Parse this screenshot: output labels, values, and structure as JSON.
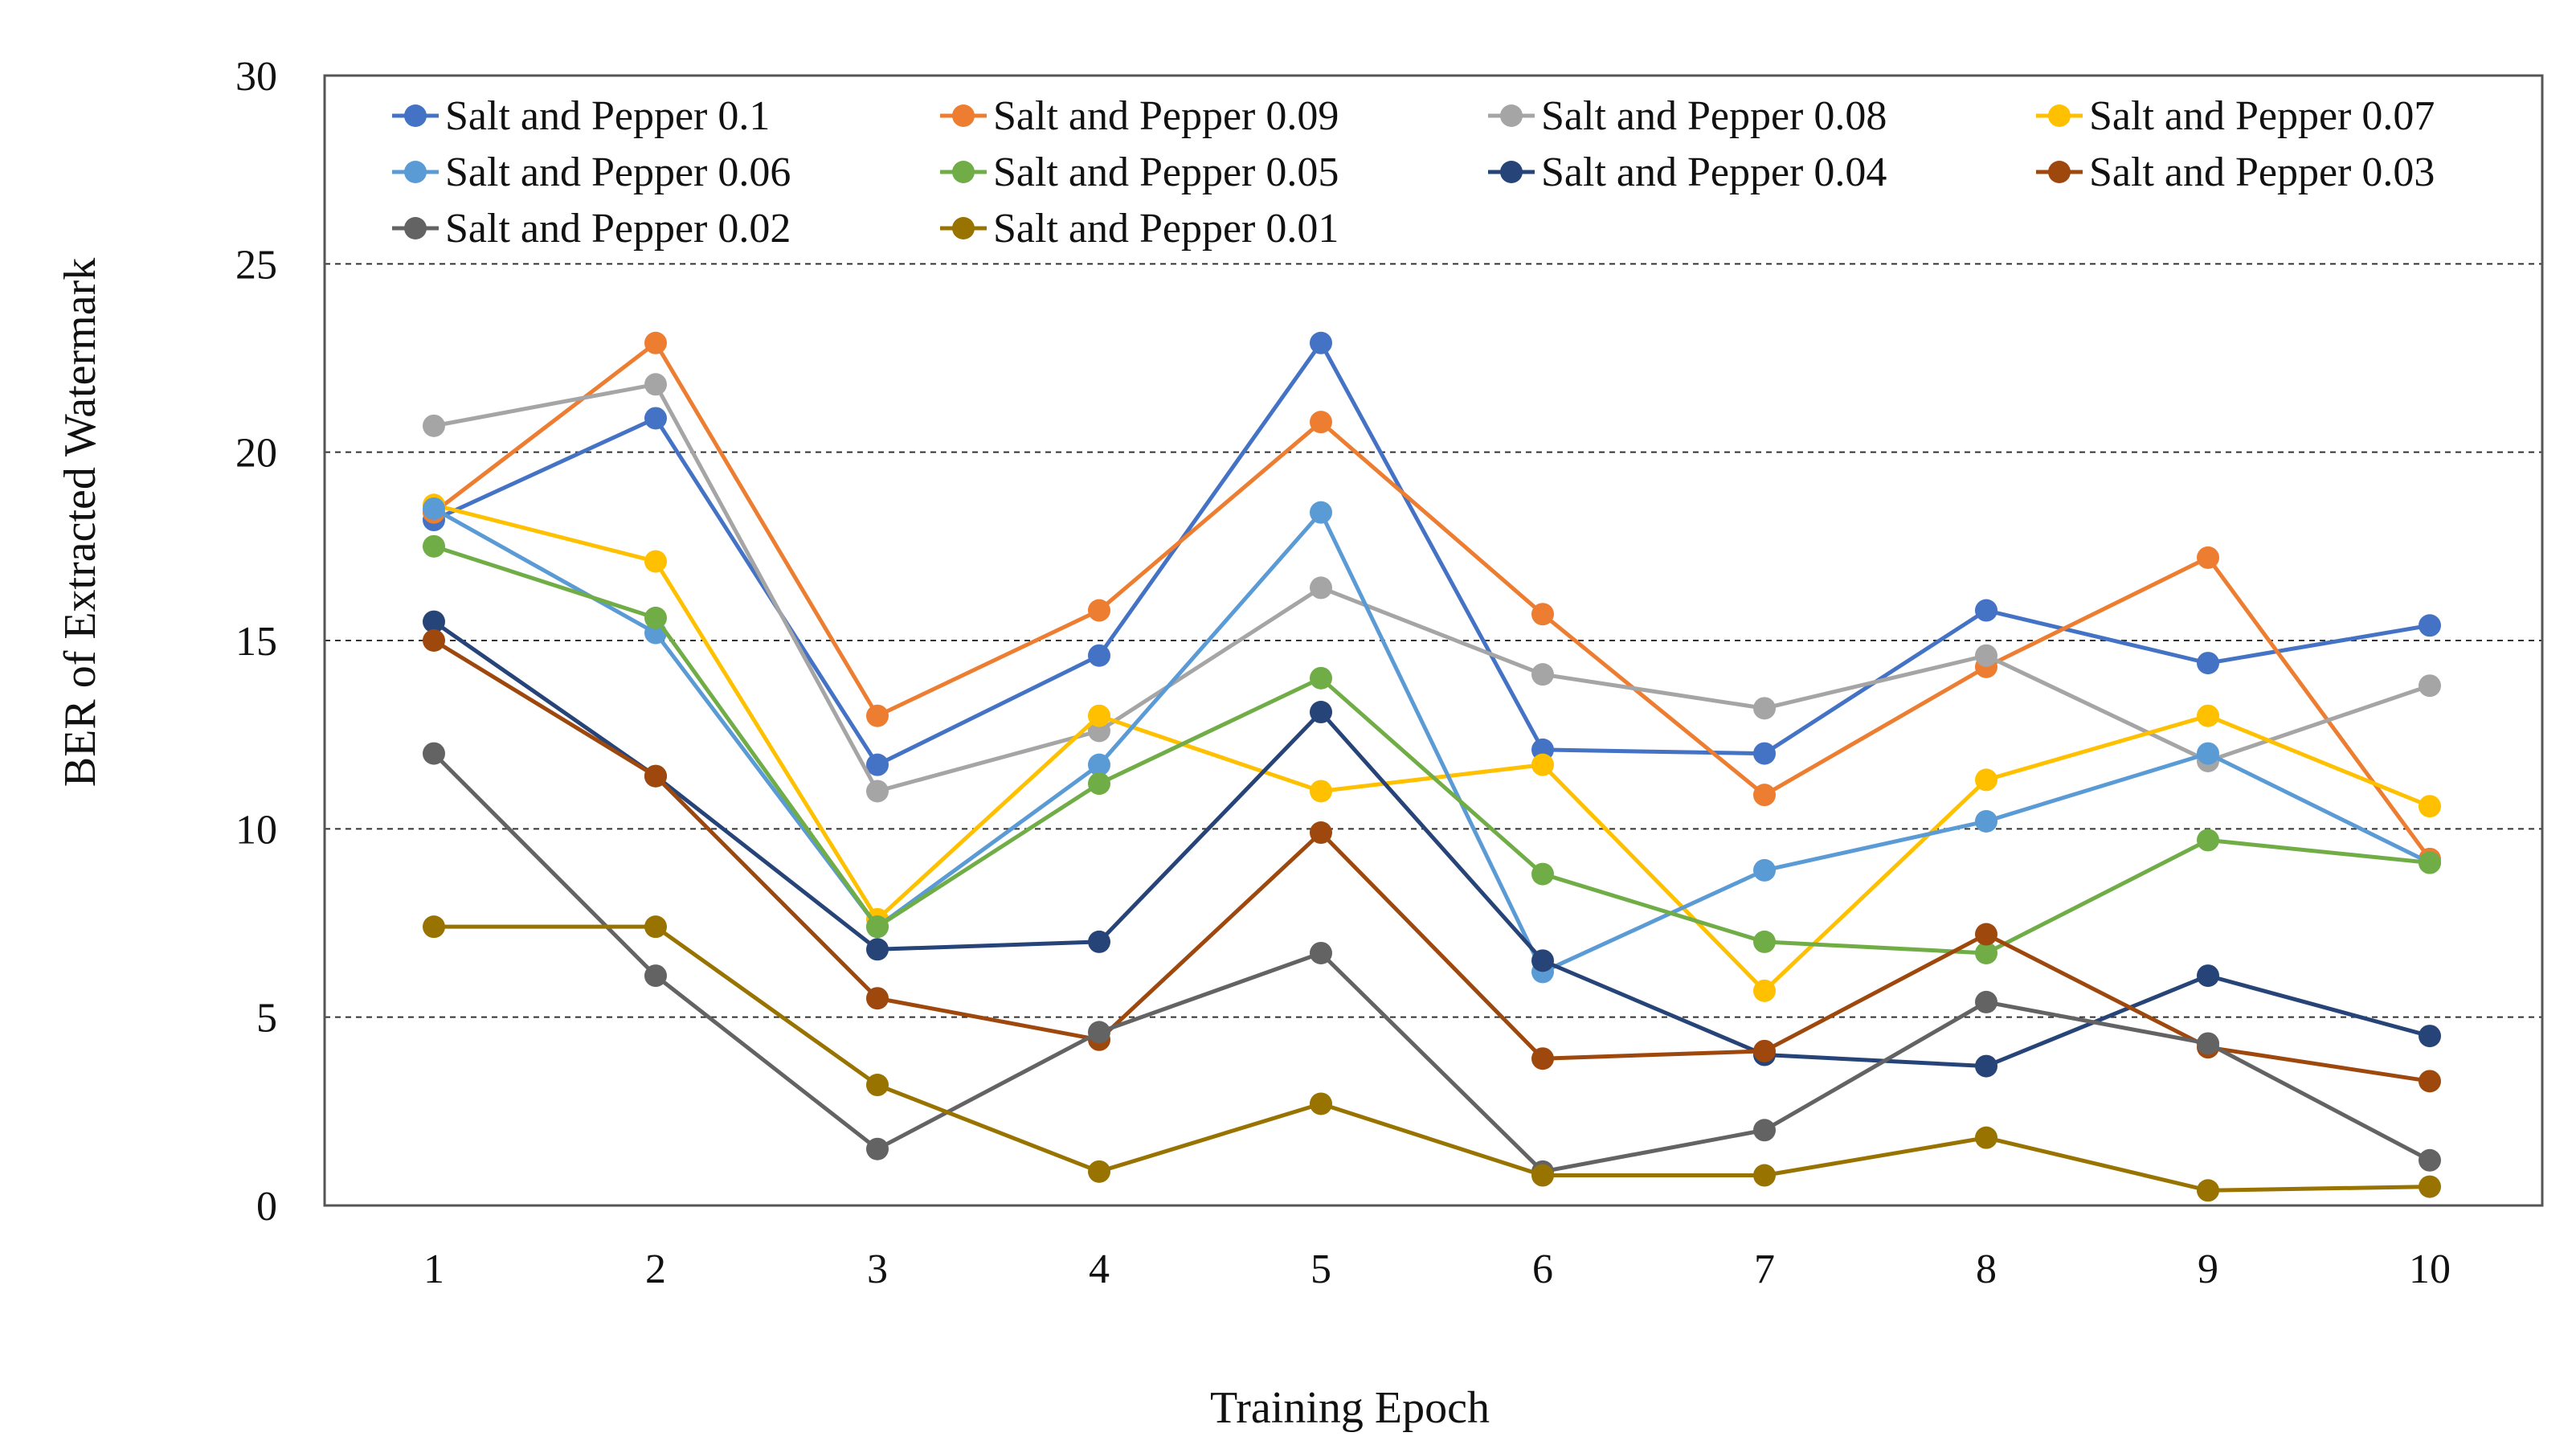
{
  "chart_data": {
    "type": "line",
    "title": "",
    "xlabel": "Training Epoch",
    "ylabel": "BER of Extracted Watermark",
    "x": [
      1,
      2,
      3,
      4,
      5,
      6,
      7,
      8,
      9,
      10
    ],
    "x_tick_labels": [
      "1",
      "2",
      "3",
      "4",
      "5",
      "6",
      "7",
      "8",
      "9",
      "10"
    ],
    "ylim": [
      0,
      30
    ],
    "y_ticks": [
      0,
      5,
      10,
      15,
      20,
      25,
      30
    ],
    "y_tick_labels": [
      "0",
      "5",
      "10",
      "15",
      "20",
      "25",
      "30"
    ],
    "grid": "horizontal dashed",
    "legend_position": "top",
    "series": [
      {
        "name": "Salt and Pepper 0.1",
        "color": "#4472C4",
        "values": [
          18.2,
          20.9,
          11.7,
          14.6,
          22.9,
          12.1,
          12.0,
          15.8,
          14.4,
          15.4
        ]
      },
      {
        "name": "Salt and Pepper 0.09",
        "color": "#ED7D31",
        "values": [
          18.4,
          22.9,
          13.0,
          15.8,
          20.8,
          15.7,
          10.9,
          14.3,
          17.2,
          9.2
        ]
      },
      {
        "name": "Salt and Pepper 0.08",
        "color": "#A5A5A5",
        "values": [
          20.7,
          21.8,
          11.0,
          12.6,
          16.4,
          14.1,
          13.2,
          14.6,
          11.8,
          13.8
        ]
      },
      {
        "name": "Salt and Pepper 0.07",
        "color": "#FFC000",
        "values": [
          18.6,
          17.1,
          7.6,
          13.0,
          11.0,
          11.7,
          5.7,
          11.3,
          13.0,
          10.6
        ]
      },
      {
        "name": "Salt and Pepper 0.06",
        "color": "#5B9BD5",
        "values": [
          18.5,
          15.2,
          7.4,
          11.7,
          18.4,
          6.2,
          8.9,
          10.2,
          12.0,
          9.1
        ]
      },
      {
        "name": "Salt and Pepper 0.05",
        "color": "#70AD47",
        "values": [
          17.5,
          15.6,
          7.4,
          11.2,
          14.0,
          8.8,
          7.0,
          6.7,
          9.7,
          9.1
        ]
      },
      {
        "name": "Salt and Pepper 0.04",
        "color": "#264478",
        "values": [
          15.5,
          11.4,
          6.8,
          7.0,
          13.1,
          6.5,
          4.0,
          3.7,
          6.1,
          4.5
        ]
      },
      {
        "name": "Salt and Pepper 0.03",
        "color": "#9E480E",
        "values": [
          15.0,
          11.4,
          5.5,
          4.4,
          9.9,
          3.9,
          4.1,
          7.2,
          4.2,
          3.3
        ]
      },
      {
        "name": "Salt and Pepper 0.02",
        "color": "#636363",
        "values": [
          12.0,
          6.1,
          1.5,
          4.6,
          6.7,
          0.9,
          2.0,
          5.4,
          4.3,
          1.2
        ]
      },
      {
        "name": "Salt and Pepper 0.01",
        "color": "#997300",
        "values": [
          7.4,
          7.4,
          3.2,
          0.9,
          2.7,
          0.8,
          0.8,
          1.8,
          0.4,
          0.5
        ]
      }
    ]
  }
}
